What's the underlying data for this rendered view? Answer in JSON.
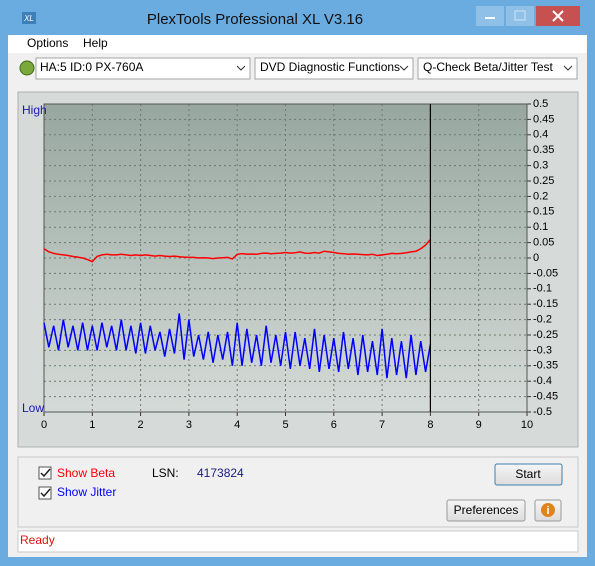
{
  "window": {
    "icon": "XL",
    "title": "PlexTools Professional XL V3.16"
  },
  "menu": [
    "Options",
    "Help"
  ],
  "toolbar": {
    "drive": "HA:5 ID:0  PX-760A",
    "function": "DVD Diagnostic Functions",
    "test": "Q-Check Beta/Jitter Test"
  },
  "chart_data": {
    "type": "line",
    "y_high_label": "High",
    "y_low_label": "Low",
    "xlim": [
      0,
      10
    ],
    "xticks": [
      0,
      1,
      2,
      3,
      4,
      5,
      6,
      7,
      8,
      9,
      10
    ],
    "ylim": [
      -0.5,
      0.5
    ],
    "yticks": [
      0.5,
      0.45,
      0.4,
      0.35,
      0.3,
      0.25,
      0.2,
      0.15,
      0.1,
      0.05,
      0,
      -0.05,
      -0.1,
      -0.15,
      -0.2,
      -0.25,
      -0.3,
      -0.35,
      -0.4,
      -0.45,
      -0.5
    ],
    "grid": true,
    "cursor_x": 8,
    "x": [
      0,
      0.1,
      0.2,
      0.3,
      0.4,
      0.5,
      0.6,
      0.7,
      0.8,
      0.9,
      1,
      1.1,
      1.2,
      1.3,
      1.4,
      1.5,
      1.6,
      1.7,
      1.8,
      1.9,
      2,
      2.1,
      2.2,
      2.3,
      2.4,
      2.5,
      2.6,
      2.7,
      2.8,
      2.9,
      3,
      3.1,
      3.2,
      3.3,
      3.4,
      3.5,
      3.6,
      3.7,
      3.8,
      3.9,
      4,
      4.1,
      4.2,
      4.3,
      4.4,
      4.5,
      4.6,
      4.7,
      4.8,
      4.9,
      5,
      5.1,
      5.2,
      5.3,
      5.4,
      5.5,
      5.6,
      5.7,
      5.8,
      5.9,
      6,
      6.1,
      6.2,
      6.3,
      6.4,
      6.5,
      6.6,
      6.7,
      6.8,
      6.9,
      7,
      7.1,
      7.2,
      7.3,
      7.4,
      7.5,
      7.6,
      7.7,
      7.8,
      7.9,
      8
    ],
    "series": [
      {
        "name": "Show Beta",
        "color": "#ff0000",
        "values": [
          0.03,
          0.02,
          0.015,
          0.012,
          0.01,
          0.008,
          0.005,
          0.003,
          0,
          -0.005,
          -0.012,
          0.005,
          0.01,
          0.012,
          0.01,
          0.01,
          0.012,
          0.01,
          0.008,
          0.01,
          0.008,
          0.01,
          0.008,
          0.006,
          0.008,
          0.006,
          0.005,
          0.006,
          0.004,
          0.003,
          0.002,
          0.002,
          0,
          0.001,
          0,
          -0.002,
          0,
          0.001,
          0.002,
          -0.003,
          0.012,
          0.014,
          0.012,
          0.013,
          0.012,
          0.015,
          0.016,
          0.014,
          0.015,
          0.016,
          0.018,
          0.016,
          0.017,
          0.02,
          0.016,
          0.015,
          0.018,
          0.016,
          0.022,
          0.02,
          0.018,
          0.015,
          0.014,
          0.012,
          0.013,
          0.012,
          0.011,
          0.01,
          0.012,
          0.008,
          0.01,
          0.012,
          0.015,
          0.014,
          0.015,
          0.017,
          0.02,
          0.022,
          0.03,
          0.042,
          0.06
        ]
      },
      {
        "name": "Show Jitter",
        "color": "#0000ff",
        "values": [
          -0.21,
          -0.29,
          -0.22,
          -0.3,
          -0.2,
          -0.29,
          -0.22,
          -0.3,
          -0.21,
          -0.3,
          -0.22,
          -0.3,
          -0.21,
          -0.29,
          -0.22,
          -0.3,
          -0.2,
          -0.3,
          -0.22,
          -0.31,
          -0.21,
          -0.31,
          -0.22,
          -0.3,
          -0.24,
          -0.32,
          -0.23,
          -0.31,
          -0.18,
          -0.33,
          -0.2,
          -0.32,
          -0.25,
          -0.33,
          -0.24,
          -0.34,
          -0.25,
          -0.33,
          -0.24,
          -0.35,
          -0.21,
          -0.35,
          -0.23,
          -0.34,
          -0.25,
          -0.35,
          -0.22,
          -0.34,
          -0.25,
          -0.35,
          -0.24,
          -0.36,
          -0.24,
          -0.35,
          -0.26,
          -0.36,
          -0.23,
          -0.37,
          -0.25,
          -0.36,
          -0.26,
          -0.37,
          -0.24,
          -0.36,
          -0.26,
          -0.38,
          -0.25,
          -0.37,
          -0.27,
          -0.38,
          -0.23,
          -0.39,
          -0.26,
          -0.38,
          -0.27,
          -0.39,
          -0.25,
          -0.38,
          -0.27,
          -0.37,
          -0.28
        ]
      }
    ]
  },
  "controls": {
    "lsn_label": "LSN:",
    "lsn_value": 4173824,
    "start": "Start",
    "preferences": "Preferences",
    "info": "i"
  },
  "status": "Ready"
}
